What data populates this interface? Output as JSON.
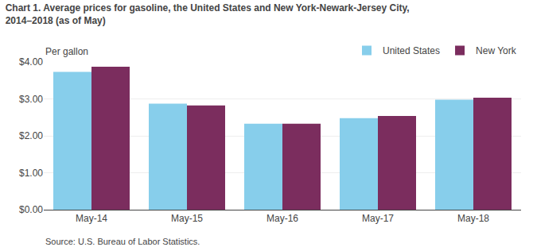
{
  "chart_data": {
    "type": "bar",
    "title": "Chart 1. Average prices for gasoline, the United States and New York-Newark-Jersey City,",
    "subtitle": "2014–2018 (as of May)",
    "y_label": "Per gallon",
    "source": "Source: U.S. Bureau of Labor Statistics.",
    "categories": [
      "May-14",
      "May-15",
      "May-16",
      "May-17",
      "May-18"
    ],
    "series": [
      {
        "name": "United States",
        "color": "#87CEEB",
        "values": [
          3.73,
          2.87,
          2.33,
          2.48,
          2.98
        ]
      },
      {
        "name": "New York",
        "color": "#7B2D5E",
        "values": [
          3.87,
          2.82,
          2.33,
          2.54,
          3.03
        ]
      }
    ],
    "ylim": [
      0.0,
      4.0
    ],
    "yticks": [
      {
        "value": 0.0,
        "label": "$0.00"
      },
      {
        "value": 1.0,
        "label": "$1.00"
      },
      {
        "value": 2.0,
        "label": "$2.00"
      },
      {
        "value": 3.0,
        "label": "$3.00"
      },
      {
        "value": 4.0,
        "label": "$4.00"
      }
    ],
    "grid": true,
    "legend": "upper right"
  }
}
